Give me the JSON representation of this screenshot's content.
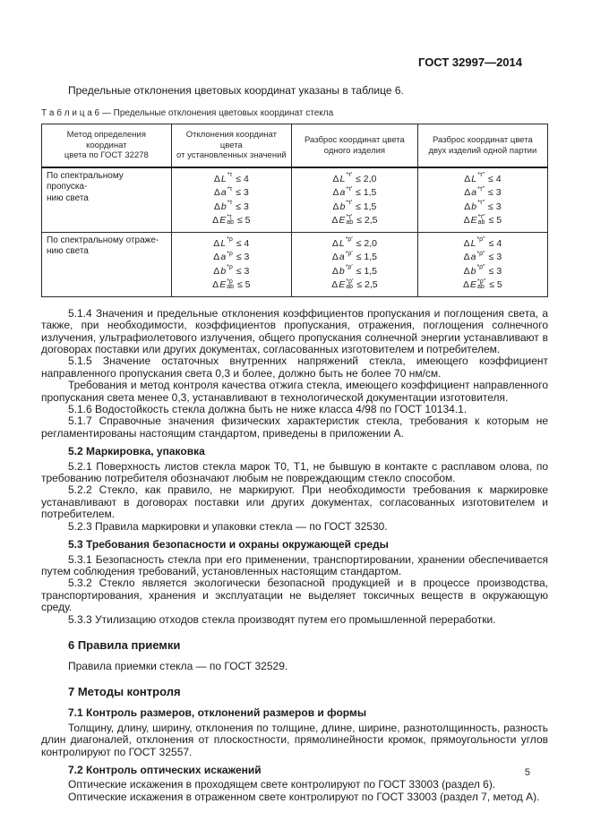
{
  "page": {
    "header": "ГОСТ 32997—2014",
    "number": "5"
  },
  "intro": "Предельные отклонения цветовых координат указаны в таблице 6.",
  "table6": {
    "caption": "Т а б л и ц а  6 — Предельные отклонения цветовых координат стекла",
    "columns": [
      "Метод определения координат\nцвета по ГОСТ 32278",
      "Отклонения координат цвета\nот установленных значений",
      "Разброс координат цвета\nодного изделия",
      "Разброс координат цвета\nдвух изделий одной партии"
    ],
    "rows": [
      {
        "method": "По спектральному пропуска-\nнию света",
        "cells": [
          [
            {
              "sym": "L",
              "sup": "*τ",
              "sub": "",
              "val": "≤ 4"
            },
            {
              "sym": "a",
              "sup": "*τ",
              "sub": "",
              "val": "≤ 3"
            },
            {
              "sym": "b",
              "sup": "*τ",
              "sub": "",
              "val": "≤ 3"
            },
            {
              "sym": "E",
              "sup": "*τ",
              "sub": "ab",
              "val": "≤ 5"
            }
          ],
          [
            {
              "sym": "L",
              "sup": "*τ′",
              "sub": "",
              "val": "≤ 2,0"
            },
            {
              "sym": "a",
              "sup": "*τ′",
              "sub": "",
              "val": "≤ 1,5"
            },
            {
              "sym": "b",
              "sup": "*τ′",
              "sub": "",
              "val": "≤ 1,5"
            },
            {
              "sym": "E",
              "sup": "*τ′",
              "sub": "ab",
              "val": "≤ 2,5"
            }
          ],
          [
            {
              "sym": "L",
              "sup": "*τ″",
              "sub": "",
              "val": "≤ 4"
            },
            {
              "sym": "a",
              "sup": "*τ″",
              "sub": "",
              "val": "≤ 3"
            },
            {
              "sym": "b",
              "sup": "*τ″",
              "sub": "",
              "val": "≤ 3"
            },
            {
              "sym": "E",
              "sup": "*τ″",
              "sub": "ab",
              "val": "≤ 5"
            }
          ]
        ]
      },
      {
        "method": "По спектральному отраже-\nнию света",
        "cells": [
          [
            {
              "sym": "L",
              "sup": "*ρ",
              "sub": "",
              "val": "≤ 4"
            },
            {
              "sym": "a",
              "sup": "*ρ",
              "sub": "",
              "val": "≤ 3"
            },
            {
              "sym": "b",
              "sup": "*ρ",
              "sub": "",
              "val": "≤ 3"
            },
            {
              "sym": "E",
              "sup": "*ρ",
              "sub": "ab",
              "val": "≤ 5"
            }
          ],
          [
            {
              "sym": "L",
              "sup": "*ρ′",
              "sub": "",
              "val": "≤ 2,0"
            },
            {
              "sym": "a",
              "sup": "*ρ′",
              "sub": "",
              "val": "≤ 1,5"
            },
            {
              "sym": "b",
              "sup": "*ρ′",
              "sub": "",
              "val": "≤ 1,5"
            },
            {
              "sym": "E",
              "sup": "*ρ′",
              "sub": "ab",
              "val": "≤ 2,5"
            }
          ],
          [
            {
              "sym": "L",
              "sup": "*ρ″",
              "sub": "",
              "val": "≤ 4"
            },
            {
              "sym": "a",
              "sup": "*ρ″",
              "sub": "",
              "val": "≤ 3"
            },
            {
              "sym": "b",
              "sup": "*ρ″",
              "sub": "",
              "val": "≤ 3"
            },
            {
              "sym": "E",
              "sup": "*ρ″",
              "sub": "ab",
              "val": "≤ 5"
            }
          ]
        ]
      }
    ]
  },
  "sections": [
    {
      "type": "para",
      "text": "5.1.4  Значения и предельные отклонения коэффициентов пропускания и поглощения света, а также, при необходимости, коэффициентов пропускания, отражения, поглощения солнечного излучения, ультрафиолетового излучения, общего пропускания солнечной энергии устанавливают в договорах поставки или других документах, согласованных изготовителем и потребителем."
    },
    {
      "type": "para",
      "text": "5.1.5  Значение остаточных внутренних напряжений стекла, имеющего коэффициент направленного пропускания света 0,3 и более, должно быть не более 70 нм/см."
    },
    {
      "type": "para",
      "text": "Требования и метод контроля качества отжига стекла, имеющего коэффициент направленного пропускания света менее 0,3, устанавливают в технологической документации изготовителя."
    },
    {
      "type": "para",
      "text": "5.1.6  Водостойкость стекла должна быть не ниже класса 4/98 по ГОСТ 10134.1."
    },
    {
      "type": "para",
      "text": "5.1.7  Справочные значения физических характеристик стекла, требования к которым не регламентированы настоящим стандартом, приведены в приложении А."
    },
    {
      "type": "subheading",
      "text": "5.2  Маркировка, упаковка"
    },
    {
      "type": "para",
      "text": "5.2.1  Поверхность листов стекла марок Т0, Т1, не бывшую в контакте с расплавом олова, по требованию потребителя обозначают любым не повреждающим стекло способом."
    },
    {
      "type": "para",
      "text": "5.2.2  Стекло, как правило, не маркируют. При необходимости требования к маркировке устанавливают в договорах поставки или других документах, согласованных изготовителем и потребителем."
    },
    {
      "type": "para",
      "text": "5.2.3  Правила маркировки и упаковки стекла — по ГОСТ 32530."
    },
    {
      "type": "subheading",
      "text": "5.3  Требования безопасности и охраны окружающей среды"
    },
    {
      "type": "para",
      "text": "5.3.1  Безопасность стекла при его применении, транспортировании, хранении обеспечивается путем соблюдения требований, установленных настоящим стандартом."
    },
    {
      "type": "para",
      "text": "5.3.2  Стекло является экологически безопасной продукцией и в процессе производства, транспортирования, хранения и эксплуатации не выделяет токсичных веществ в окружающую среду."
    },
    {
      "type": "para",
      "text": "5.3.3  Утилизацию отходов стекла производят путем его промышленной переработки."
    },
    {
      "type": "heading",
      "text": "6  Правила приемки"
    },
    {
      "type": "para",
      "text": "Правила приемки стекла — по ГОСТ 32529."
    },
    {
      "type": "heading",
      "text": "7  Методы контроля"
    },
    {
      "type": "subheading",
      "text": "7.1  Контроль размеров, отклонений размеров и формы"
    },
    {
      "type": "para",
      "text": "Толщину, длину, ширину, отклонения по толщине, длине, ширине, разнотолщинность, разность длин диагоналей, отклонения от плоскостности, прямолинейности кромок, прямоугольности углов контролируют по ГОСТ 32557."
    },
    {
      "type": "subheading",
      "text": "7.2  Контроль оптических искажений"
    },
    {
      "type": "para",
      "text": "Оптические искажения в проходящем свете контролируют по ГОСТ 33003 (раздел 6)."
    },
    {
      "type": "para",
      "text": "Оптические искажения в отраженном свете контролируют по ГОСТ 33003 (раздел 7, метод А)."
    }
  ]
}
